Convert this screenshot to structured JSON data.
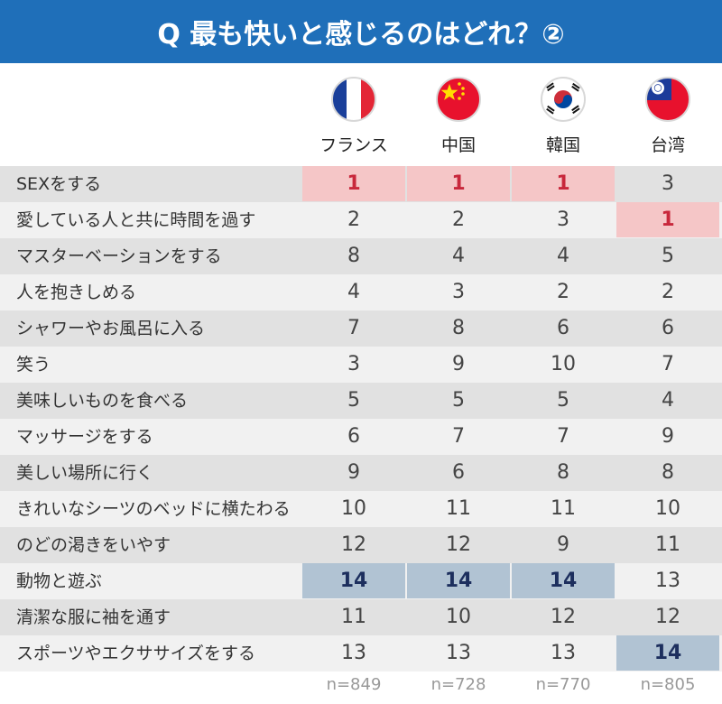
{
  "title": "Q 最も快いと感じるのはどれ？②",
  "colors": {
    "header_bg": "#1f6fb9",
    "rank_first_bg": "#f5c6c7",
    "rank_first_text": "#c8283c",
    "rank_last_bg": "#b1c3d3",
    "rank_last_text": "#1d2f5e"
  },
  "chart_data": {
    "type": "table",
    "columns": [
      "フランス",
      "中国",
      "韓国",
      "台湾"
    ],
    "column_icons": [
      "france-flag-icon",
      "china-flag-icon",
      "south-korea-flag-icon",
      "taiwan-flag-icon"
    ],
    "rows": [
      {
        "label": "SEXをする",
        "values": [
          1,
          1,
          1,
          3
        ]
      },
      {
        "label": "愛している人と共に時間を過す",
        "values": [
          2,
          2,
          3,
          1
        ]
      },
      {
        "label": "マスターベーションをする",
        "values": [
          8,
          4,
          4,
          5
        ]
      },
      {
        "label": "人を抱きしめる",
        "values": [
          4,
          3,
          2,
          2
        ]
      },
      {
        "label": "シャワーやお風呂に入る",
        "values": [
          7,
          8,
          6,
          6
        ]
      },
      {
        "label": "笑う",
        "values": [
          3,
          9,
          10,
          7
        ]
      },
      {
        "label": "美味しいものを食べる",
        "values": [
          5,
          5,
          5,
          4
        ]
      },
      {
        "label": "マッサージをする",
        "values": [
          6,
          7,
          7,
          9
        ]
      },
      {
        "label": "美しい場所に行く",
        "values": [
          9,
          6,
          8,
          8
        ]
      },
      {
        "label": "きれいなシーツのベッドに横たわる",
        "values": [
          10,
          11,
          11,
          10
        ]
      },
      {
        "label": "のどの渇きをいやす",
        "values": [
          12,
          12,
          9,
          11
        ]
      },
      {
        "label": "動物と遊ぶ",
        "values": [
          14,
          14,
          14,
          13
        ]
      },
      {
        "label": "清潔な服に袖を通す",
        "values": [
          11,
          10,
          12,
          12
        ]
      },
      {
        "label": "スポーツやエクササイズをする",
        "values": [
          13,
          13,
          13,
          14
        ]
      }
    ],
    "sample_sizes": [
      "n=849",
      "n=728",
      "n=770",
      "n=805"
    ]
  }
}
